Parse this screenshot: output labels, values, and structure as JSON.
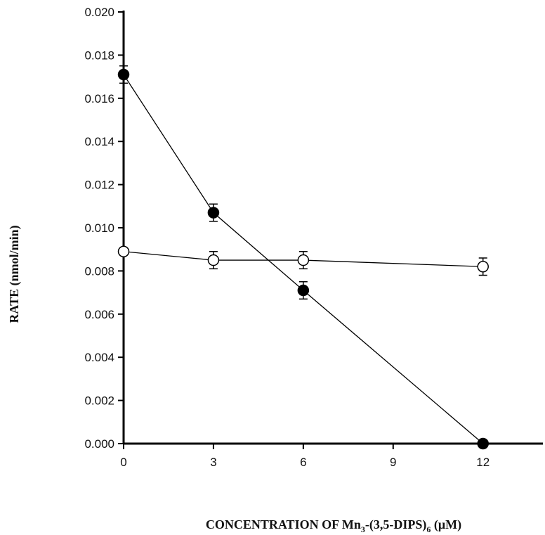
{
  "chart_data": {
    "type": "scatter",
    "ylabel": "RATE (nmol/min)",
    "xlabel": {
      "prefix": "CONCENTRATION OF Mn",
      "sub1": "3",
      "middle": "-(3,5-DIPS)",
      "sub2": "6",
      "suffix": " (μM)"
    },
    "xlim": [
      0,
      14
    ],
    "ylim": [
      0,
      0.02
    ],
    "x_ticks": [
      0,
      3,
      6,
      9,
      12
    ],
    "x_tick_labels": [
      "0",
      "3",
      "6",
      "9",
      "12"
    ],
    "y_ticks": [
      0,
      0.002,
      0.004,
      0.006,
      0.008,
      0.01,
      0.012,
      0.014,
      0.016,
      0.018,
      0.02
    ],
    "y_tick_labels": [
      "0.000",
      "0.002",
      "0.004",
      "0.006",
      "0.008",
      "0.010",
      "0.012",
      "0.014",
      "0.016",
      "0.018",
      "0.020"
    ],
    "grid": false,
    "series": [
      {
        "marker": "filled-circle",
        "color": "#000000",
        "x": [
          0,
          3,
          6,
          12
        ],
        "y": [
          0.0171,
          0.0107,
          0.0071,
          0.0
        ],
        "err": [
          0.0004,
          0.0004,
          0.0004,
          0.0
        ]
      },
      {
        "marker": "open-circle",
        "color": "#000000",
        "x": [
          0,
          3,
          6,
          12
        ],
        "y": [
          0.0089,
          0.0085,
          0.0085,
          0.0082
        ],
        "err": [
          0.0,
          0.0004,
          0.0004,
          0.0004
        ]
      }
    ]
  }
}
